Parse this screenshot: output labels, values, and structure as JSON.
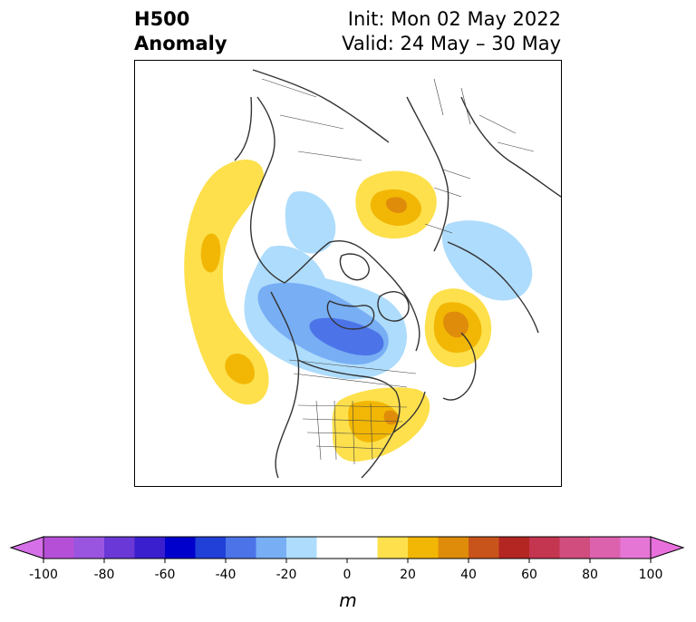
{
  "header": {
    "title_line1": "H500",
    "title_line2": "Anomaly",
    "init_text": "Init: Mon 02 May 2022",
    "valid_text": "Valid: 24 May – 30 May"
  },
  "map": {
    "projection": "north-polar-stereographic",
    "variable": "500 hPa geopotential height anomaly",
    "anomaly_centers": [
      {
        "region": "Gulf of Alaska / NE Pacific",
        "sign": "positive",
        "max_m": 20
      },
      {
        "region": "Central North Pacific",
        "sign": "positive",
        "max_m": 20
      },
      {
        "region": "Western Russia",
        "sign": "positive",
        "max_m": 30
      },
      {
        "region": "North Atlantic",
        "sign": "positive",
        "max_m": 30
      },
      {
        "region": "Eastern United States",
        "sign": "positive",
        "max_m": 20
      },
      {
        "region": "Hudson Bay / Central Canada",
        "sign": "negative",
        "min_m": -40
      },
      {
        "region": "Siberia",
        "sign": "negative",
        "min_m": -20
      },
      {
        "region": "Bering Sea",
        "sign": "negative",
        "min_m": -20
      }
    ]
  },
  "colorbar": {
    "unit_label": "m",
    "ticks": [
      "-100",
      "-80",
      "-60",
      "-40",
      "-20",
      "0",
      "20",
      "40",
      "60",
      "80",
      "100"
    ],
    "levels": [
      -100,
      -90,
      -80,
      -70,
      -60,
      -50,
      -40,
      -30,
      -20,
      -10,
      10,
      20,
      30,
      40,
      50,
      60,
      70,
      80,
      90,
      100
    ],
    "colors": [
      "#b64fd8",
      "#9a55e0",
      "#6a38d6",
      "#3a1fcf",
      "#0000cc",
      "#2040d8",
      "#4c74e8",
      "#78aef4",
      "#aedcfc",
      "#ffffff",
      "#ffffff",
      "#fde04c",
      "#f2b705",
      "#df8c0b",
      "#c8541b",
      "#b42621",
      "#c4354f",
      "#d04d7e",
      "#dc62ae",
      "#e676d6"
    ],
    "extend_low_color": "#d670e8",
    "extend_high_color": "#e870dc"
  }
}
